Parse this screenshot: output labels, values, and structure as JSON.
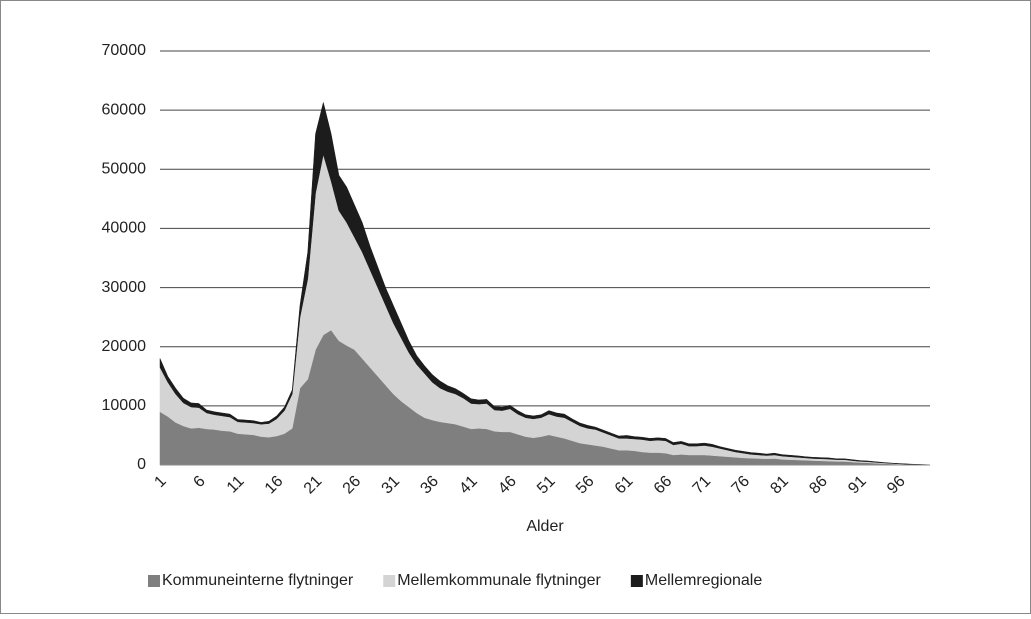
{
  "chart_data": {
    "type": "stacked_area",
    "x_label": "Alder",
    "categories": [
      1,
      null,
      null,
      null,
      null,
      6,
      null,
      null,
      null,
      null,
      11,
      null,
      null,
      null,
      null,
      16,
      null,
      null,
      null,
      null,
      21,
      null,
      null,
      null,
      null,
      26,
      null,
      null,
      null,
      null,
      31,
      null,
      null,
      null,
      null,
      36,
      null,
      null,
      null,
      null,
      41,
      null,
      null,
      null,
      null,
      46,
      null,
      null,
      null,
      null,
      51,
      null,
      null,
      null,
      null,
      56,
      null,
      null,
      null,
      null,
      61,
      null,
      null,
      null,
      null,
      66,
      null,
      null,
      null,
      null,
      71,
      null,
      null,
      null,
      null,
      76,
      null,
      null,
      null,
      null,
      81,
      null,
      null,
      null,
      null,
      86,
      null,
      null,
      null,
      null,
      91,
      null,
      null,
      null,
      null,
      96,
      null,
      null,
      null,
      null
    ],
    "series": [
      {
        "name": "Kommuneinterne flytninger",
        "color": "#7f7f7f",
        "values": [
          9000,
          8200,
          7200,
          6600,
          6200,
          6300,
          6100,
          6000,
          5800,
          5700,
          5300,
          5200,
          5100,
          4800,
          4700,
          4900,
          5300,
          6200,
          13000,
          14500,
          19500,
          22000,
          22800,
          21000,
          20200,
          19500,
          18000,
          16500,
          15000,
          13500,
          12000,
          10800,
          9800,
          8800,
          8000,
          7600,
          7300,
          7100,
          6900,
          6500,
          6100,
          6200,
          6100,
          5700,
          5600,
          5600,
          5200,
          4800,
          4600,
          4800,
          5100,
          4800,
          4500,
          4100,
          3700,
          3500,
          3300,
          3100,
          2800,
          2500,
          2500,
          2400,
          2200,
          2100,
          2100,
          2000,
          1700,
          1800,
          1700,
          1700,
          1700,
          1600,
          1500,
          1400,
          1300,
          1200,
          1150,
          1100,
          1050,
          1100,
          950,
          900,
          850,
          800,
          750,
          700,
          650,
          600,
          600,
          500,
          420,
          380,
          300,
          230,
          180,
          130,
          90,
          60,
          40,
          20
        ]
      },
      {
        "name": "Mellemkommunale flytninger",
        "color": "#d4d4d4",
        "values": [
          7500,
          5800,
          4800,
          3900,
          3600,
          3400,
          2700,
          2500,
          2500,
          2400,
          2000,
          2000,
          2000,
          2100,
          2300,
          2900,
          3900,
          5800,
          12000,
          17000,
          26500,
          30500,
          25200,
          22000,
          20800,
          19000,
          18000,
          16500,
          15000,
          13500,
          12000,
          10700,
          9200,
          8200,
          7500,
          6400,
          5700,
          5300,
          5100,
          4800,
          4300,
          4100,
          4300,
          3600,
          3600,
          3900,
          3400,
          3200,
          3200,
          3200,
          3500,
          3400,
          3500,
          3200,
          2900,
          2700,
          2700,
          2400,
          2200,
          2000,
          2000,
          2000,
          2100,
          2000,
          2100,
          2100,
          1700,
          1800,
          1500,
          1500,
          1600,
          1500,
          1300,
          1100,
          900,
          800,
          650,
          600,
          550,
          600,
          550,
          500,
          450,
          400,
          350,
          350,
          350,
          300,
          300,
          250,
          200,
          180,
          150,
          120,
          90,
          70,
          50,
          30,
          20,
          10
        ]
      },
      {
        "name": "Mellemregionale",
        "color": "#1c1c1c",
        "values": [
          1500,
          1000,
          1000,
          800,
          700,
          700,
          500,
          500,
          500,
          500,
          400,
          400,
          400,
          300,
          400,
          500,
          600,
          700,
          2000,
          4500,
          10000,
          8800,
          8000,
          6000,
          6000,
          5500,
          5000,
          4000,
          3500,
          3000,
          3000,
          2500,
          2000,
          1500,
          1300,
          1300,
          1200,
          1000,
          900,
          800,
          800,
          700,
          700,
          600,
          600,
          600,
          600,
          500,
          500,
          500,
          600,
          600,
          600,
          500,
          500,
          500,
          400,
          400,
          400,
          400,
          500,
          400,
          400,
          400,
          400,
          400,
          400,
          400,
          400,
          400,
          400,
          400,
          300,
          300,
          300,
          300,
          300,
          300,
          250,
          300,
          250,
          250,
          250,
          200,
          200,
          200,
          200,
          150,
          150,
          150,
          130,
          120,
          100,
          80,
          60,
          50,
          40,
          30,
          20,
          10
        ]
      }
    ],
    "ylim": [
      0,
      70000
    ],
    "yticks": [
      0,
      10000,
      20000,
      30000,
      40000,
      50000,
      60000,
      70000
    ],
    "grid": true
  }
}
